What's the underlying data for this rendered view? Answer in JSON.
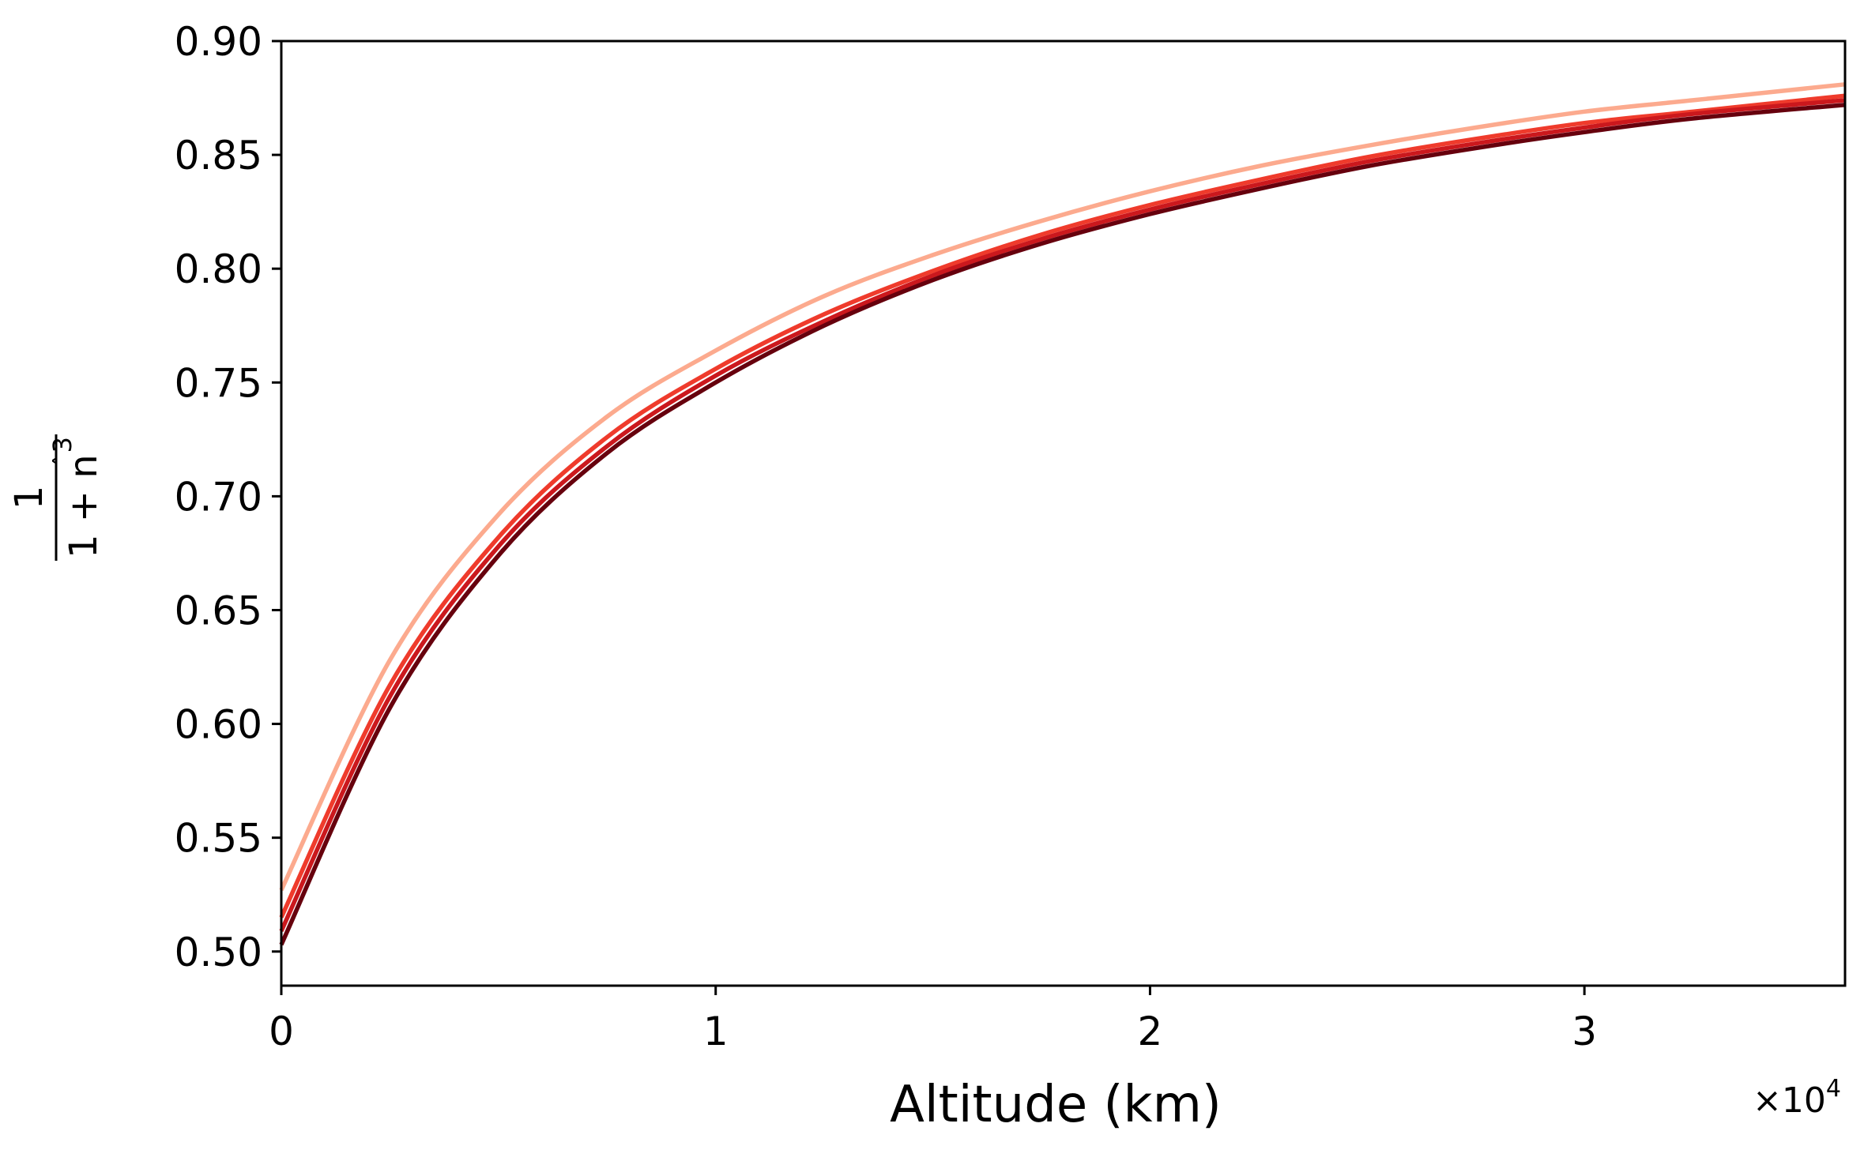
{
  "chart_data": {
    "type": "line",
    "title": "",
    "xlabel": "Altitude (km)",
    "ylabel": {
      "numerator": "1",
      "denominator_base": "1 + n",
      "denominator_hat": "ˆ",
      "denominator_exp": "3"
    },
    "x_offset": {
      "base": "×10",
      "exp": "4"
    },
    "xlim": [
      0,
      3.6
    ],
    "ylim": [
      0.485,
      0.9
    ],
    "xticks": [
      0,
      1,
      2,
      3
    ],
    "xtick_labels": [
      "0",
      "1",
      "2",
      "3"
    ],
    "yticks": [
      0.5,
      0.55,
      0.6,
      0.65,
      0.7,
      0.75,
      0.8,
      0.85,
      0.9
    ],
    "ytick_labels": [
      "0.50",
      "0.55",
      "0.60",
      "0.65",
      "0.70",
      "0.75",
      "0.80",
      "0.85",
      "0.90"
    ],
    "grid": false,
    "legend": "none",
    "series": [
      {
        "color": "#fcaa8e",
        "x": [
          0,
          0.25,
          0.5,
          0.75,
          1.0,
          1.25,
          1.5,
          1.75,
          2.0,
          2.25,
          2.5,
          2.75,
          3.0,
          3.25,
          3.6
        ],
        "y": [
          0.527,
          0.628,
          0.692,
          0.735,
          0.764,
          0.788,
          0.806,
          0.821,
          0.834,
          0.845,
          0.854,
          0.862,
          0.869,
          0.874,
          0.881
        ]
      },
      {
        "color": "#ef3b2c",
        "x": [
          0,
          0.25,
          0.5,
          0.75,
          1.0,
          1.25,
          1.5,
          1.75,
          2.0,
          2.25,
          2.5,
          2.75,
          3.0,
          3.25,
          3.6
        ],
        "y": [
          0.515,
          0.617,
          0.682,
          0.726,
          0.756,
          0.78,
          0.799,
          0.815,
          0.828,
          0.839,
          0.849,
          0.857,
          0.864,
          0.869,
          0.876
        ]
      },
      {
        "color": "#cb181d",
        "x": [
          0,
          0.25,
          0.5,
          0.75,
          1.0,
          1.25,
          1.5,
          1.75,
          2.0,
          2.25,
          2.5,
          2.75,
          3.0,
          3.25,
          3.6
        ],
        "y": [
          0.509,
          0.612,
          0.678,
          0.722,
          0.753,
          0.777,
          0.797,
          0.813,
          0.826,
          0.837,
          0.847,
          0.855,
          0.862,
          0.868,
          0.874
        ]
      },
      {
        "color": "#67000d",
        "x": [
          0,
          0.25,
          0.5,
          0.75,
          1.0,
          1.25,
          1.5,
          1.75,
          2.0,
          2.25,
          2.5,
          2.75,
          3.0,
          3.25,
          3.6
        ],
        "y": [
          0.503,
          0.607,
          0.674,
          0.719,
          0.75,
          0.775,
          0.795,
          0.811,
          0.824,
          0.835,
          0.845,
          0.853,
          0.86,
          0.866,
          0.872
        ]
      }
    ]
  }
}
